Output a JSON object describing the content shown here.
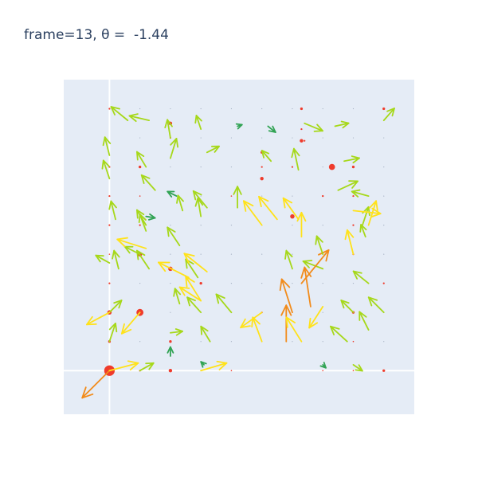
{
  "chart_data": {
    "type": "quiver",
    "title": "frame=13, θ =  -1.44",
    "xlabel": "",
    "ylabel": "",
    "xlim": [
      -1.5,
      10.0
    ],
    "ylim": [
      -1.5,
      10.0
    ],
    "grid": true,
    "zero_lines": true,
    "legend": false,
    "colors": {
      "plot_bg": "#e5ecf6",
      "zero_line": "#ffffff",
      "point": "#ef3b2c",
      "arrow_short": "#31a354",
      "arrow_mid": "#a6d81a",
      "arrow_long": "#ffe21a",
      "arrow_max": "#f28b1a"
    },
    "points": [
      {
        "x": 0,
        "y": 0,
        "s": 12
      },
      {
        "x": 1,
        "y": 0,
        "s": 2
      },
      {
        "x": 2,
        "y": 0,
        "s": 4
      },
      {
        "x": 3,
        "y": 0,
        "s": 1
      },
      {
        "x": 4,
        "y": 0,
        "s": 1
      },
      {
        "x": 7,
        "y": 0,
        "s": 1
      },
      {
        "x": 8,
        "y": 0,
        "s": 1
      },
      {
        "x": 9,
        "y": 0,
        "s": 3
      },
      {
        "x": 0,
        "y": 1,
        "s": 3
      },
      {
        "x": 2,
        "y": 1,
        "s": 3
      },
      {
        "x": 8,
        "y": 1,
        "s": 1
      },
      {
        "x": 0,
        "y": 2,
        "s": 5
      },
      {
        "x": 1,
        "y": 2,
        "s": 8
      },
      {
        "x": 5,
        "y": 2,
        "s": 2
      },
      {
        "x": 8,
        "y": 2,
        "s": 3
      },
      {
        "x": 0,
        "y": 3,
        "s": 2
      },
      {
        "x": 3,
        "y": 3,
        "s": 3
      },
      {
        "x": 9,
        "y": 3,
        "s": 2
      },
      {
        "x": 0,
        "y": 4,
        "s": 1
      },
      {
        "x": 1,
        "y": 4,
        "s": 5
      },
      {
        "x": 2,
        "y": 3.5,
        "s": 5
      },
      {
        "x": 8,
        "y": 4,
        "s": 2
      },
      {
        "x": 0,
        "y": 5,
        "s": 2
      },
      {
        "x": 1,
        "y": 5,
        "s": 2
      },
      {
        "x": 8,
        "y": 5,
        "s": 2
      },
      {
        "x": 0,
        "y": 6,
        "s": 2
      },
      {
        "x": 1,
        "y": 6,
        "s": 1
      },
      {
        "x": 4,
        "y": 6,
        "s": 1
      },
      {
        "x": 7,
        "y": 6,
        "s": 2
      },
      {
        "x": 8,
        "y": 6,
        "s": 2
      },
      {
        "x": 0,
        "y": 7,
        "s": 2
      },
      {
        "x": 1,
        "y": 7,
        "s": 3
      },
      {
        "x": 5,
        "y": 6.6,
        "s": 4
      },
      {
        "x": 6,
        "y": 5.3,
        "s": 5
      },
      {
        "x": 7,
        "y": 6,
        "s": 2
      },
      {
        "x": 7.3,
        "y": 7,
        "s": 7
      },
      {
        "x": 8,
        "y": 7,
        "s": 3
      },
      {
        "x": 2,
        "y": 8,
        "s": 2
      },
      {
        "x": 5,
        "y": 7,
        "s": 2
      },
      {
        "x": 6,
        "y": 7,
        "s": 2
      },
      {
        "x": 6.4,
        "y": 7.9,
        "s": 2
      },
      {
        "x": 2,
        "y": 8.5,
        "s": 4
      },
      {
        "x": 5,
        "y": 7.5,
        "s": 3
      },
      {
        "x": 6.3,
        "y": 7.9,
        "s": 4
      },
      {
        "x": 0,
        "y": 9,
        "s": 2
      },
      {
        "x": 6.3,
        "y": 8.3,
        "s": 2
      },
      {
        "x": 9,
        "y": 9,
        "s": 3
      },
      {
        "x": 6.3,
        "y": 9,
        "s": 3
      }
    ],
    "grid_points": {
      "x": [
        0,
        1,
        2,
        3,
        4,
        5,
        6,
        7,
        8,
        9
      ],
      "y": [
        0,
        1,
        2,
        3,
        4,
        5,
        6,
        7,
        8,
        9
      ],
      "s": 1
    },
    "arrows": [
      {
        "x": 0,
        "y": 0,
        "u": -0.9,
        "v": -0.9
      },
      {
        "x": 0,
        "y": 0,
        "u": 0.95,
        "v": 0.25
      },
      {
        "x": 1,
        "y": 0,
        "u": 0.45,
        "v": 0.25
      },
      {
        "x": 2,
        "y": 0.5,
        "u": 0,
        "v": 0.3
      },
      {
        "x": 3,
        "y": 0,
        "u": 0.85,
        "v": 0.25
      },
      {
        "x": 3.1,
        "y": 0.2,
        "u": -0.1,
        "v": 0.1
      },
      {
        "x": 7,
        "y": 0.2,
        "u": 0.1,
        "v": -0.1
      },
      {
        "x": 8,
        "y": 0.2,
        "u": 0.3,
        "v": -0.2
      },
      {
        "x": 0,
        "y": 1,
        "u": 0.2,
        "v": 0.6
      },
      {
        "x": 1,
        "y": 2,
        "u": -0.6,
        "v": -0.7
      },
      {
        "x": 0,
        "y": 2,
        "u": 0.4,
        "v": 0.4
      },
      {
        "x": 0,
        "y": 2,
        "u": -0.75,
        "v": -0.4
      },
      {
        "x": 2,
        "y": 1.3,
        "u": 0.4,
        "v": 0.05
      },
      {
        "x": 3.3,
        "y": 1,
        "u": -0.3,
        "v": 0.5
      },
      {
        "x": 5,
        "y": 1,
        "u": -0.3,
        "v": 0.8
      },
      {
        "x": 5.8,
        "y": 1,
        "u": 0,
        "v": 1.2
      },
      {
        "x": 6.3,
        "y": 1,
        "u": -0.5,
        "v": 0.8
      },
      {
        "x": 7.8,
        "y": 1,
        "u": -0.55,
        "v": 0.5
      },
      {
        "x": 8.5,
        "y": 1.4,
        "u": -0.3,
        "v": 0.6
      },
      {
        "x": 2.3,
        "y": 2.3,
        "u": -0.15,
        "v": 0.5
      },
      {
        "x": 3,
        "y": 2,
        "u": -0.45,
        "v": 0.5
      },
      {
        "x": 4,
        "y": 2,
        "u": -0.5,
        "v": 0.6
      },
      {
        "x": 5,
        "y": 2,
        "u": -0.7,
        "v": -0.5
      },
      {
        "x": 6,
        "y": 2,
        "u": -0.35,
        "v": 1.1
      },
      {
        "x": 7,
        "y": 2.2,
        "u": -0.45,
        "v": -0.7
      },
      {
        "x": 8,
        "y": 2,
        "u": -0.4,
        "v": 0.4
      },
      {
        "x": 9,
        "y": 2,
        "u": -0.5,
        "v": 0.5
      },
      {
        "x": 3,
        "y": 2.4,
        "u": -0.7,
        "v": 0.45
      },
      {
        "x": 3,
        "y": 2.4,
        "u": -0.5,
        "v": 0.8
      },
      {
        "x": 6.6,
        "y": 2.2,
        "u": -0.2,
        "v": 1.3
      },
      {
        "x": 8.5,
        "y": 3,
        "u": -0.5,
        "v": 0.4
      },
      {
        "x": 8,
        "y": 4,
        "u": -0.2,
        "v": 0.8
      },
      {
        "x": 7,
        "y": 3.5,
        "u": -0.65,
        "v": 0.25
      },
      {
        "x": 6,
        "y": 3.5,
        "u": -0.2,
        "v": 0.6
      },
      {
        "x": 6.3,
        "y": 3,
        "u": 0.9,
        "v": 1.1
      },
      {
        "x": 0.3,
        "y": 3.5,
        "u": -0.15,
        "v": 0.6
      },
      {
        "x": 1.3,
        "y": 3.5,
        "u": -0.4,
        "v": 0.6
      },
      {
        "x": 0,
        "y": 3.7,
        "u": -0.45,
        "v": 0.25
      },
      {
        "x": 1,
        "y": 4,
        "u": -0.5,
        "v": 0.25
      },
      {
        "x": 2.9,
        "y": 3.2,
        "u": -0.4,
        "v": 0.6
      },
      {
        "x": 2.6,
        "y": 3.2,
        "u": -1.0,
        "v": 0.5
      },
      {
        "x": 3.2,
        "y": 3.4,
        "u": -0.75,
        "v": 0.6
      },
      {
        "x": 2.3,
        "y": 4.3,
        "u": -0.4,
        "v": 0.6
      },
      {
        "x": 1.2,
        "y": 4.2,
        "u": -0.95,
        "v": 0.3
      },
      {
        "x": 1.2,
        "y": 4.8,
        "u": -0.2,
        "v": 0.55
      },
      {
        "x": 7,
        "y": 4,
        "u": -0.2,
        "v": 0.6
      },
      {
        "x": 8.3,
        "y": 5,
        "u": 0.2,
        "v": 0.6
      },
      {
        "x": 8.4,
        "y": 4.6,
        "u": -0.15,
        "v": 0.4
      },
      {
        "x": 1.2,
        "y": 5.3,
        "u": 0.3,
        "v": -0.05
      },
      {
        "x": 1.2,
        "y": 5,
        "u": -0.3,
        "v": 0.5
      },
      {
        "x": 2.4,
        "y": 5.5,
        "u": -0.15,
        "v": 0.5
      },
      {
        "x": 3.0,
        "y": 5.3,
        "u": -0.1,
        "v": 0.6
      },
      {
        "x": 5,
        "y": 5,
        "u": -0.6,
        "v": 0.8
      },
      {
        "x": 6.3,
        "y": 4.6,
        "u": 0,
        "v": 0.8
      },
      {
        "x": 8,
        "y": 5.5,
        "u": 0.9,
        "v": -0.1
      },
      {
        "x": 8.5,
        "y": 5,
        "u": 0.25,
        "v": 0.8
      },
      {
        "x": 0.2,
        "y": 5.2,
        "u": -0.15,
        "v": 0.6
      },
      {
        "x": 1.5,
        "y": 6.2,
        "u": -0.45,
        "v": 0.5
      },
      {
        "x": 2.2,
        "y": 6,
        "u": -0.3,
        "v": 0.15
      },
      {
        "x": 3.2,
        "y": 5.6,
        "u": -0.45,
        "v": 0.55
      },
      {
        "x": 4.2,
        "y": 5.6,
        "u": 0,
        "v": 0.7
      },
      {
        "x": 5.5,
        "y": 5.2,
        "u": -0.6,
        "v": 0.75
      },
      {
        "x": 6.2,
        "y": 5.2,
        "u": -0.5,
        "v": 0.7
      },
      {
        "x": 8.5,
        "y": 6,
        "u": -0.55,
        "v": 0.15
      },
      {
        "x": 7.5,
        "y": 6.2,
        "u": 0.65,
        "v": 0.3
      },
      {
        "x": 0,
        "y": 6.6,
        "u": -0.2,
        "v": 0.6
      },
      {
        "x": 0,
        "y": 7.4,
        "u": -0.15,
        "v": 0.6
      },
      {
        "x": 1.2,
        "y": 7,
        "u": -0.3,
        "v": 0.5
      },
      {
        "x": 2,
        "y": 7.3,
        "u": 0.2,
        "v": 0.65
      },
      {
        "x": 3.2,
        "y": 7.5,
        "u": 0.4,
        "v": 0.2
      },
      {
        "x": 5.3,
        "y": 7.2,
        "u": -0.3,
        "v": 0.35
      },
      {
        "x": 6.2,
        "y": 6.9,
        "u": -0.15,
        "v": 0.7
      },
      {
        "x": 7.7,
        "y": 7.2,
        "u": 0.5,
        "v": 0.1
      },
      {
        "x": 2,
        "y": 8,
        "u": -0.1,
        "v": 0.6
      },
      {
        "x": 3,
        "y": 8.3,
        "u": -0.15,
        "v": 0.45
      },
      {
        "x": 4.2,
        "y": 8.4,
        "u": 0.15,
        "v": 0.05
      },
      {
        "x": 5.2,
        "y": 8.4,
        "u": 0.25,
        "v": -0.2
      },
      {
        "x": 6.4,
        "y": 8.5,
        "u": 0.6,
        "v": -0.25
      },
      {
        "x": 7.4,
        "y": 8.4,
        "u": 0.45,
        "v": 0.1
      },
      {
        "x": 0.6,
        "y": 8.6,
        "u": -0.55,
        "v": 0.45
      },
      {
        "x": 1.3,
        "y": 8.6,
        "u": -0.65,
        "v": 0.15
      },
      {
        "x": 9,
        "y": 8.6,
        "u": 0.35,
        "v": 0.4
      }
    ]
  }
}
